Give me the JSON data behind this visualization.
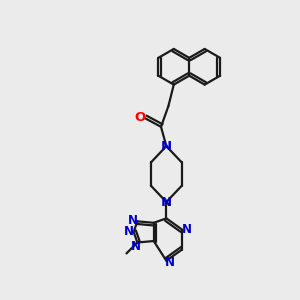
{
  "bg": "#ebebeb",
  "bc": "#1a1a1a",
  "nc": "#0000cd",
  "oc": "#ff0000",
  "lw": 1.6,
  "fs": 8.5,
  "xlim": [
    0,
    10
  ],
  "ylim": [
    0,
    10
  ],
  "figsize": [
    3.0,
    3.0
  ],
  "dpi": 100
}
